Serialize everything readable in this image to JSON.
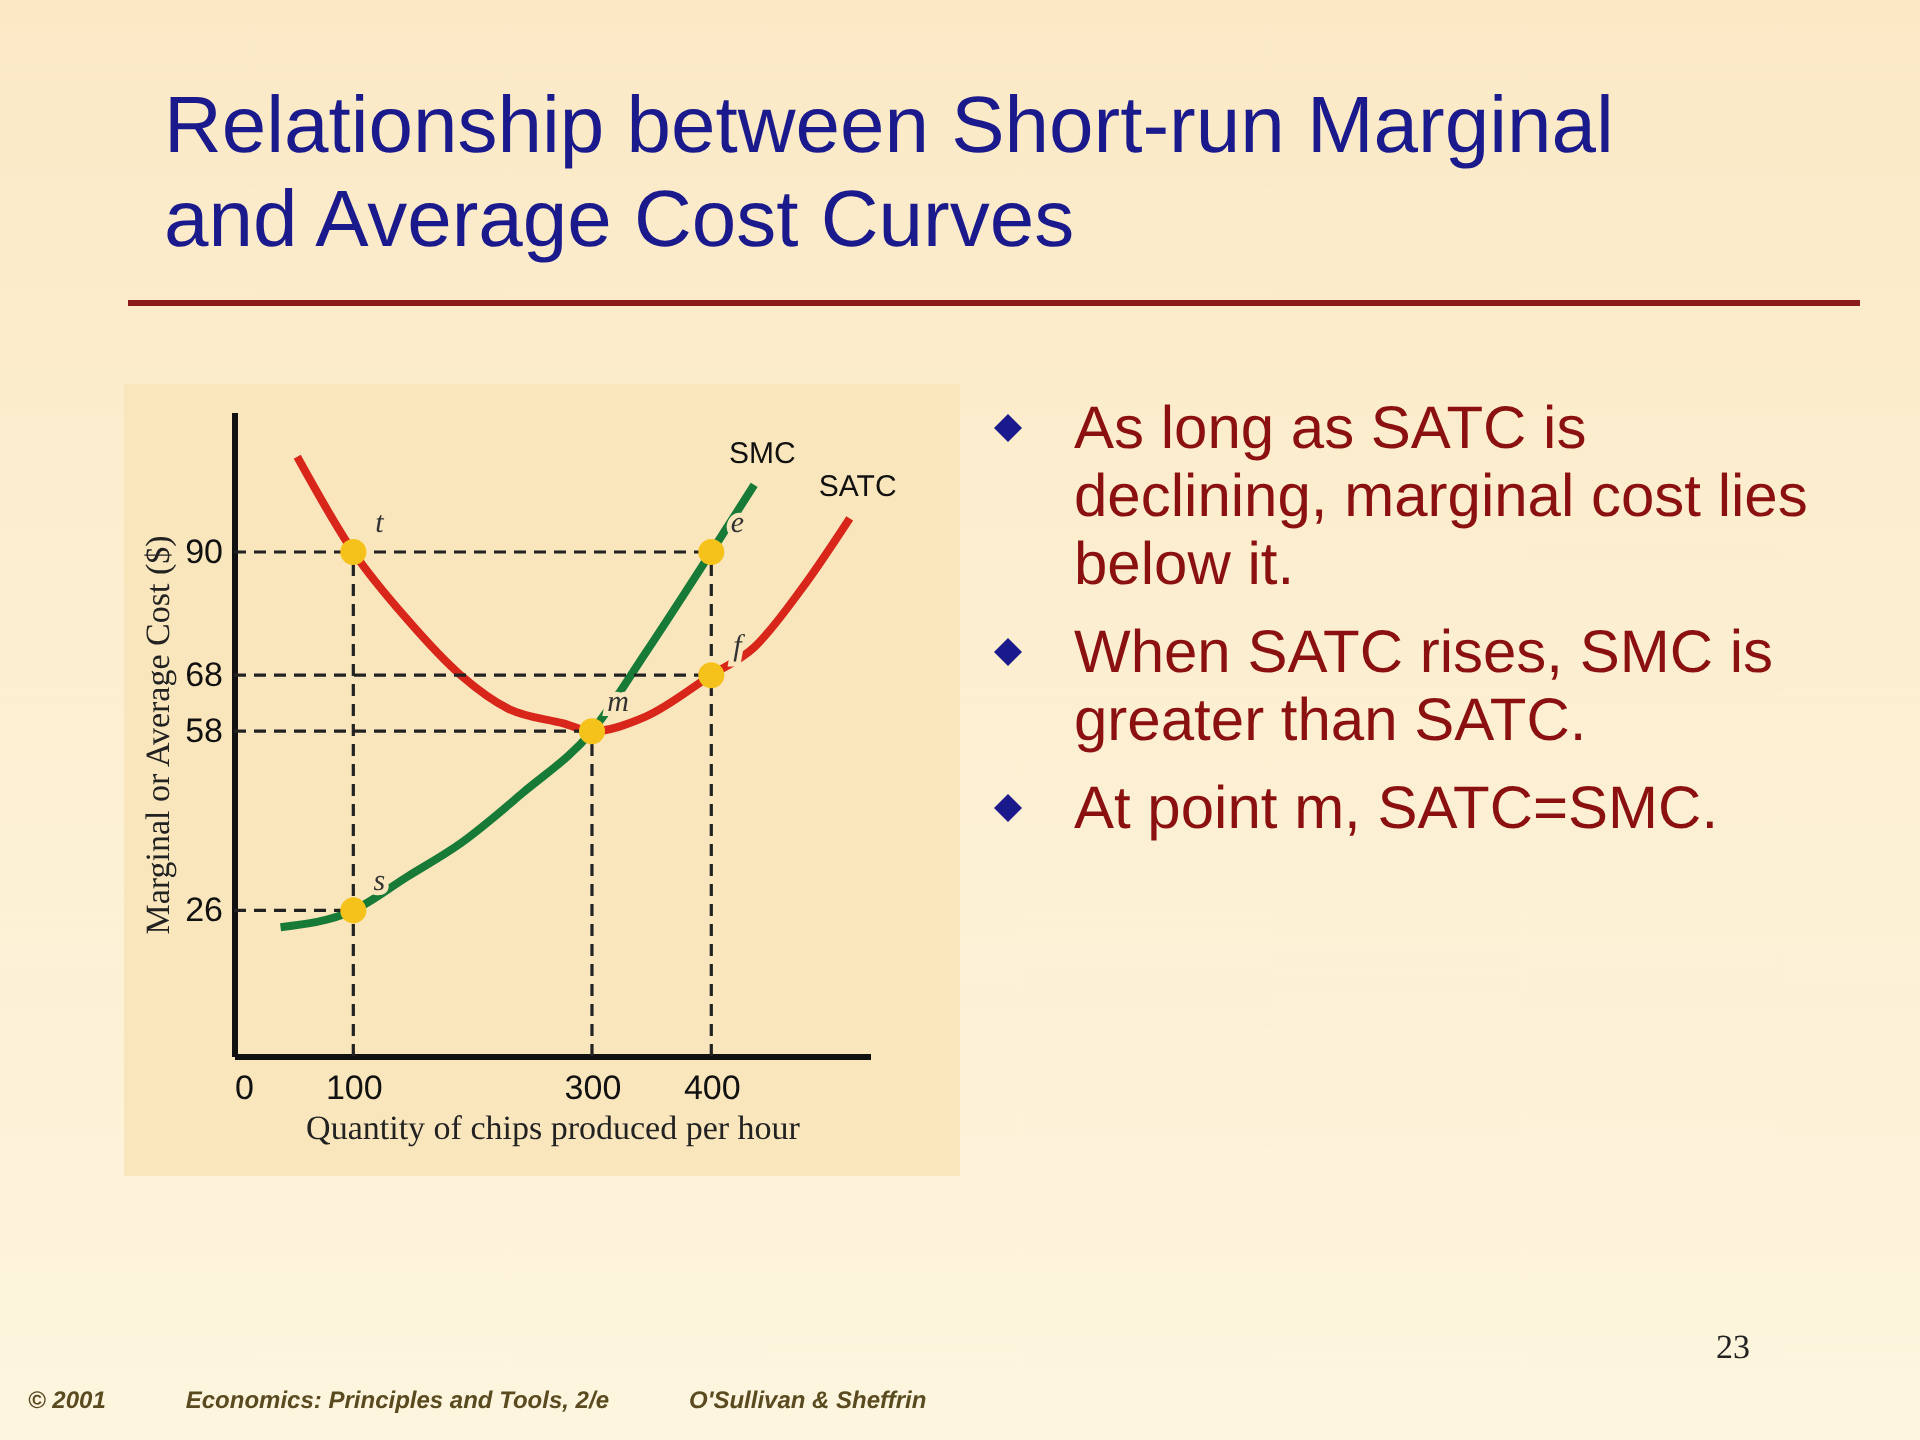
{
  "chart_data": {
    "type": "line",
    "title": "Relationship between Short-run Marginal and Average Cost Curves",
    "xlabel": "Quantity of chips produced per hour",
    "ylabel": "Marginal or Average Cost ($)",
    "xlim": [
      0,
      533
    ],
    "ylim": [
      0,
      115
    ],
    "xticks": [
      0,
      100,
      300,
      400
    ],
    "yticks": [
      26,
      58,
      68,
      90
    ],
    "series": [
      {
        "name": "SATC",
        "color": "#d8261a",
        "x": [
          53,
          100,
          145,
          190,
          230,
          276,
          300,
          345,
          400,
          436,
          476,
          516
        ],
        "values": [
          107,
          90,
          78,
          68,
          62,
          59.4,
          58,
          60.6,
          68,
          73,
          83.5,
          96
        ]
      },
      {
        "name": "SMC",
        "color": "#177a37",
        "x": [
          39,
          100,
          145,
          190,
          242,
          300,
          345,
          400,
          436
        ],
        "values": [
          23,
          26,
          32,
          38,
          47,
          58,
          72,
          90,
          102
        ]
      },
      {
        "color": "#222222",
        "line_style": "dashed",
        "x": [
          0,
          400
        ],
        "values": [
          90,
          90
        ]
      },
      {
        "color": "#222222",
        "line_style": "dashed",
        "x": [
          0,
          400
        ],
        "values": [
          68,
          68
        ]
      },
      {
        "color": "#222222",
        "line_style": "dashed",
        "x": [
          0,
          300
        ],
        "values": [
          58,
          58
        ]
      },
      {
        "color": "#222222",
        "line_style": "dashed",
        "x": [
          0,
          100
        ],
        "values": [
          26,
          26
        ]
      },
      {
        "color": "#222222",
        "line_style": "dashed",
        "x": [
          100,
          100
        ],
        "values": [
          0,
          90
        ]
      },
      {
        "color": "#222222",
        "line_style": "dashed",
        "x": [
          300,
          300
        ],
        "values": [
          0,
          58
        ]
      },
      {
        "color": "#222222",
        "line_style": "dashed",
        "x": [
          400,
          400
        ],
        "values": [
          0,
          90
        ]
      },
      {
        "type": "scatter",
        "marker": "circle",
        "color": "#f5c21b",
        "x": [
          100,
          400,
          300,
          400,
          100
        ],
        "values": [
          90,
          90,
          58,
          68,
          26
        ]
      }
    ],
    "annotations": [
      {
        "text": "t",
        "x": 100,
        "y": 90
      },
      {
        "text": "e",
        "x": 400,
        "y": 90
      },
      {
        "text": "m",
        "x": 300,
        "y": 58
      },
      {
        "text": "f",
        "x": 400,
        "y": 68
      },
      {
        "text": "s",
        "x": 100,
        "y": 26
      },
      "As long as SATC is declining, marginal cost lies below it.",
      "When SATC rises, SMC is greater than SATC.",
      "At point m, SATC=SMC.",
      "© 2001",
      "Economics: Principles and Tools, 2/e",
      "O'Sullivan & Sheffrin",
      "23"
    ]
  }
}
